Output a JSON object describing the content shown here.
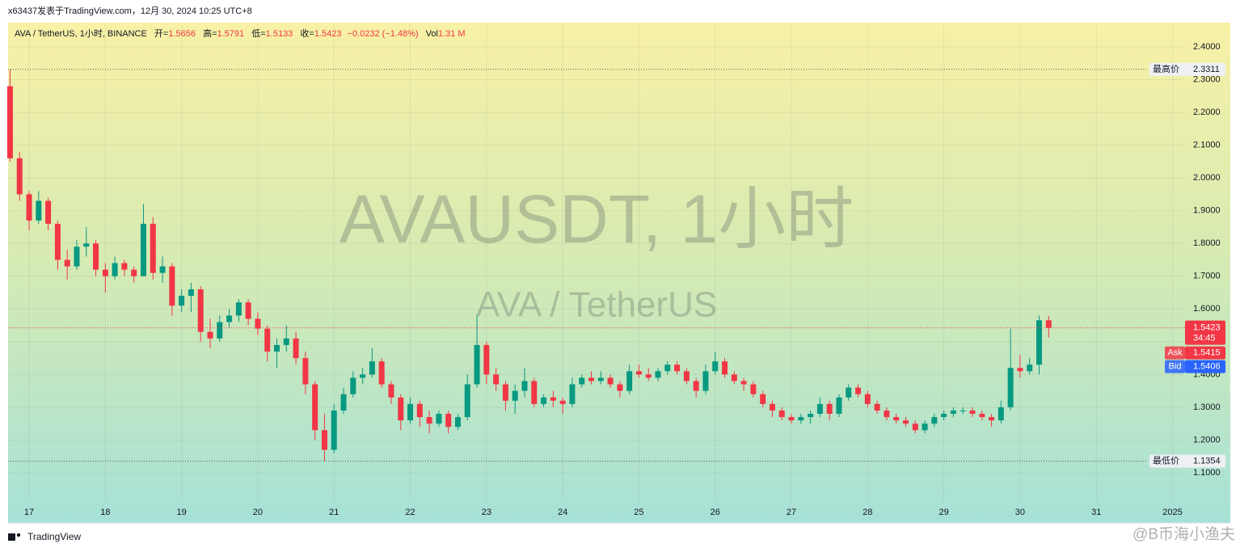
{
  "header": {
    "attribution": "x63437发表于TradingView.com，12月 30, 2024 10:25 UTC+8"
  },
  "chart_data": {
    "type": "candlestick",
    "title": "AVA / TetherUS, 1小时, BINANCE",
    "ohlc_labels": [
      "开=",
      "高=",
      "低=",
      "收="
    ],
    "change": "−0.0232 (−1.48%)",
    "volume_label": "Vol",
    "volume": "1.31 M",
    "watermark": "AVAUSDT, 1小时",
    "watermark_subtitle": "AVA / TetherUS",
    "up_color": "#089981",
    "down_color": "#f23645",
    "grid": true,
    "xlim": [
      16.724,
      32.164
    ],
    "ylim": [
      1.0136,
      2.474
    ],
    "xticks": [
      17,
      18,
      19,
      20,
      21,
      22,
      23,
      24,
      25,
      26,
      27,
      28,
      29,
      30,
      31,
      {
        "value": 32,
        "label": "2025"
      }
    ],
    "yticks": [
      {
        "value": 1.1,
        "label": "1.1000"
      },
      {
        "value": 1.2,
        "label": "1.2000"
      },
      {
        "value": 1.3,
        "label": "1.3000"
      },
      {
        "value": 1.4,
        "label": "1.4000"
      },
      {
        "value": 1.5,
        "label": "1.5000"
      },
      {
        "value": 1.6,
        "label": "1.6000"
      },
      {
        "value": 1.7,
        "label": "1.7000"
      },
      {
        "value": 1.8,
        "label": "1.8000"
      },
      {
        "value": 1.9,
        "label": "1.9000"
      },
      {
        "value": 2.0,
        "label": "2.0000"
      },
      {
        "value": 2.1,
        "label": "2.1000"
      },
      {
        "value": 2.2,
        "label": "2.2000"
      },
      {
        "value": 2.3,
        "label": "2.3000"
      },
      {
        "value": 2.4,
        "label": "2.4000"
      }
    ],
    "x": [
      16.75,
      16.875,
      17,
      17.125,
      17.25,
      17.375,
      17.5,
      17.625,
      17.75,
      17.875,
      18,
      18.125,
      18.25,
      18.375,
      18.5,
      18.625,
      18.75,
      18.875,
      19,
      19.125,
      19.25,
      19.375,
      19.5,
      19.625,
      19.75,
      19.875,
      20,
      20.125,
      20.25,
      20.375,
      20.5,
      20.625,
      20.75,
      20.875,
      21,
      21.125,
      21.25,
      21.375,
      21.5,
      21.625,
      21.75,
      21.875,
      22,
      22.125,
      22.25,
      22.375,
      22.5,
      22.625,
      22.75,
      22.875,
      23,
      23.125,
      23.25,
      23.375,
      23.5,
      23.625,
      23.75,
      23.875,
      24,
      24.125,
      24.25,
      24.375,
      24.5,
      24.625,
      24.75,
      24.875,
      25,
      25.125,
      25.25,
      25.375,
      25.5,
      25.625,
      25.75,
      25.875,
      26,
      26.125,
      26.25,
      26.375,
      26.5,
      26.625,
      26.75,
      26.875,
      27,
      27.125,
      27.25,
      27.375,
      27.5,
      27.625,
      27.75,
      27.875,
      28,
      28.125,
      28.25,
      28.375,
      28.5,
      28.625,
      28.75,
      28.875,
      29,
      29.125,
      29.25,
      29.375,
      29.5,
      29.625,
      29.75,
      29.875,
      30,
      30.125,
      30.25,
      30.375
    ],
    "ohlc": [
      [
        2.28,
        2.3311,
        2.05,
        2.06
      ],
      [
        2.06,
        2.08,
        1.93,
        1.95
      ],
      [
        1.95,
        1.96,
        1.84,
        1.87
      ],
      [
        1.87,
        1.96,
        1.86,
        1.93
      ],
      [
        1.93,
        1.94,
        1.84,
        1.86
      ],
      [
        1.86,
        1.87,
        1.72,
        1.75
      ],
      [
        1.75,
        1.78,
        1.69,
        1.73
      ],
      [
        1.73,
        1.81,
        1.72,
        1.79
      ],
      [
        1.79,
        1.85,
        1.76,
        1.8
      ],
      [
        1.8,
        1.81,
        1.7,
        1.72
      ],
      [
        1.72,
        1.74,
        1.65,
        1.7
      ],
      [
        1.7,
        1.76,
        1.69,
        1.74
      ],
      [
        1.74,
        1.75,
        1.7,
        1.72
      ],
      [
        1.72,
        1.73,
        1.68,
        1.7
      ],
      [
        1.7,
        1.92,
        1.7,
        1.86
      ],
      [
        1.86,
        1.88,
        1.69,
        1.71
      ],
      [
        1.71,
        1.76,
        1.68,
        1.73
      ],
      [
        1.73,
        1.74,
        1.58,
        1.61
      ],
      [
        1.61,
        1.66,
        1.59,
        1.64
      ],
      [
        1.64,
        1.68,
        1.59,
        1.66
      ],
      [
        1.66,
        1.67,
        1.5,
        1.53
      ],
      [
        1.53,
        1.57,
        1.48,
        1.51
      ],
      [
        1.51,
        1.58,
        1.5,
        1.56
      ],
      [
        1.56,
        1.6,
        1.54,
        1.58
      ],
      [
        1.58,
        1.63,
        1.56,
        1.62
      ],
      [
        1.62,
        1.63,
        1.55,
        1.57
      ],
      [
        1.57,
        1.59,
        1.52,
        1.54
      ],
      [
        1.54,
        1.55,
        1.44,
        1.47
      ],
      [
        1.47,
        1.51,
        1.42,
        1.49
      ],
      [
        1.49,
        1.55,
        1.47,
        1.51
      ],
      [
        1.51,
        1.53,
        1.43,
        1.45
      ],
      [
        1.45,
        1.47,
        1.34,
        1.37
      ],
      [
        1.37,
        1.38,
        1.2,
        1.23
      ],
      [
        1.23,
        1.28,
        1.1354,
        1.17
      ],
      [
        1.17,
        1.31,
        1.16,
        1.29
      ],
      [
        1.29,
        1.36,
        1.28,
        1.34
      ],
      [
        1.34,
        1.41,
        1.33,
        1.39
      ],
      [
        1.39,
        1.42,
        1.37,
        1.4
      ],
      [
        1.4,
        1.48,
        1.39,
        1.44
      ],
      [
        1.44,
        1.45,
        1.36,
        1.37
      ],
      [
        1.37,
        1.38,
        1.31,
        1.33
      ],
      [
        1.33,
        1.34,
        1.23,
        1.26
      ],
      [
        1.26,
        1.33,
        1.25,
        1.31
      ],
      [
        1.31,
        1.32,
        1.24,
        1.27
      ],
      [
        1.27,
        1.29,
        1.22,
        1.25
      ],
      [
        1.25,
        1.29,
        1.24,
        1.28
      ],
      [
        1.28,
        1.29,
        1.22,
        1.24
      ],
      [
        1.24,
        1.28,
        1.23,
        1.27
      ],
      [
        1.27,
        1.4,
        1.26,
        1.37
      ],
      [
        1.37,
        1.58,
        1.36,
        1.49
      ],
      [
        1.49,
        1.5,
        1.37,
        1.4
      ],
      [
        1.4,
        1.42,
        1.35,
        1.37
      ],
      [
        1.37,
        1.38,
        1.29,
        1.32
      ],
      [
        1.32,
        1.37,
        1.28,
        1.35
      ],
      [
        1.35,
        1.42,
        1.33,
        1.38
      ],
      [
        1.38,
        1.39,
        1.3,
        1.31
      ],
      [
        1.31,
        1.34,
        1.3,
        1.33
      ],
      [
        1.33,
        1.35,
        1.3,
        1.32
      ],
      [
        1.32,
        1.33,
        1.28,
        1.31
      ],
      [
        1.31,
        1.39,
        1.3,
        1.37
      ],
      [
        1.37,
        1.4,
        1.36,
        1.39
      ],
      [
        1.39,
        1.41,
        1.37,
        1.38
      ],
      [
        1.38,
        1.41,
        1.37,
        1.39
      ],
      [
        1.39,
        1.4,
        1.36,
        1.37
      ],
      [
        1.37,
        1.38,
        1.33,
        1.35
      ],
      [
        1.35,
        1.43,
        1.34,
        1.41
      ],
      [
        1.41,
        1.43,
        1.39,
        1.4
      ],
      [
        1.4,
        1.42,
        1.38,
        1.39
      ],
      [
        1.39,
        1.42,
        1.38,
        1.41
      ],
      [
        1.41,
        1.44,
        1.4,
        1.43
      ],
      [
        1.43,
        1.44,
        1.4,
        1.41
      ],
      [
        1.41,
        1.42,
        1.37,
        1.38
      ],
      [
        1.38,
        1.39,
        1.33,
        1.35
      ],
      [
        1.35,
        1.43,
        1.34,
        1.41
      ],
      [
        1.41,
        1.47,
        1.4,
        1.44
      ],
      [
        1.44,
        1.45,
        1.39,
        1.4
      ],
      [
        1.4,
        1.41,
        1.37,
        1.38
      ],
      [
        1.38,
        1.39,
        1.35,
        1.37
      ],
      [
        1.37,
        1.38,
        1.33,
        1.34
      ],
      [
        1.34,
        1.35,
        1.3,
        1.31
      ],
      [
        1.31,
        1.32,
        1.27,
        1.29
      ],
      [
        1.29,
        1.3,
        1.26,
        1.27
      ],
      [
        1.27,
        1.28,
        1.25,
        1.26
      ],
      [
        1.26,
        1.28,
        1.25,
        1.27
      ],
      [
        1.27,
        1.29,
        1.25,
        1.28
      ],
      [
        1.28,
        1.33,
        1.27,
        1.31
      ],
      [
        1.31,
        1.32,
        1.26,
        1.28
      ],
      [
        1.28,
        1.34,
        1.27,
        1.33
      ],
      [
        1.33,
        1.37,
        1.32,
        1.36
      ],
      [
        1.36,
        1.37,
        1.33,
        1.34
      ],
      [
        1.34,
        1.35,
        1.3,
        1.31
      ],
      [
        1.31,
        1.32,
        1.28,
        1.29
      ],
      [
        1.29,
        1.3,
        1.26,
        1.27
      ],
      [
        1.27,
        1.28,
        1.25,
        1.26
      ],
      [
        1.26,
        1.27,
        1.24,
        1.25
      ],
      [
        1.25,
        1.26,
        1.22,
        1.23
      ],
      [
        1.23,
        1.26,
        1.22,
        1.25
      ],
      [
        1.25,
        1.28,
        1.24,
        1.27
      ],
      [
        1.27,
        1.29,
        1.26,
        1.28
      ],
      [
        1.28,
        1.3,
        1.27,
        1.29
      ],
      [
        1.29,
        1.3,
        1.28,
        1.29
      ],
      [
        1.29,
        1.3,
        1.27,
        1.28
      ],
      [
        1.28,
        1.29,
        1.26,
        1.27
      ],
      [
        1.27,
        1.28,
        1.24,
        1.26
      ],
      [
        1.26,
        1.32,
        1.25,
        1.3
      ],
      [
        1.3,
        1.54,
        1.29,
        1.42
      ],
      [
        1.42,
        1.46,
        1.39,
        1.41
      ],
      [
        1.41,
        1.45,
        1.4,
        1.43
      ],
      [
        1.43,
        1.58,
        1.4,
        1.5656
      ],
      [
        1.5656,
        1.5791,
        1.5133,
        1.5423
      ]
    ],
    "high_marker": {
      "label": "最高价",
      "value": 2.3311
    },
    "low_marker": {
      "label": "最低价",
      "value": 1.1354
    },
    "countdown": "34:45",
    "ask": {
      "label": "Ask",
      "value": 1.5415
    },
    "bid": {
      "label": "Bid",
      "value": 1.5406
    }
  },
  "footer": {
    "brand": "TradingView",
    "watermark": "@B币海小渔夫"
  }
}
